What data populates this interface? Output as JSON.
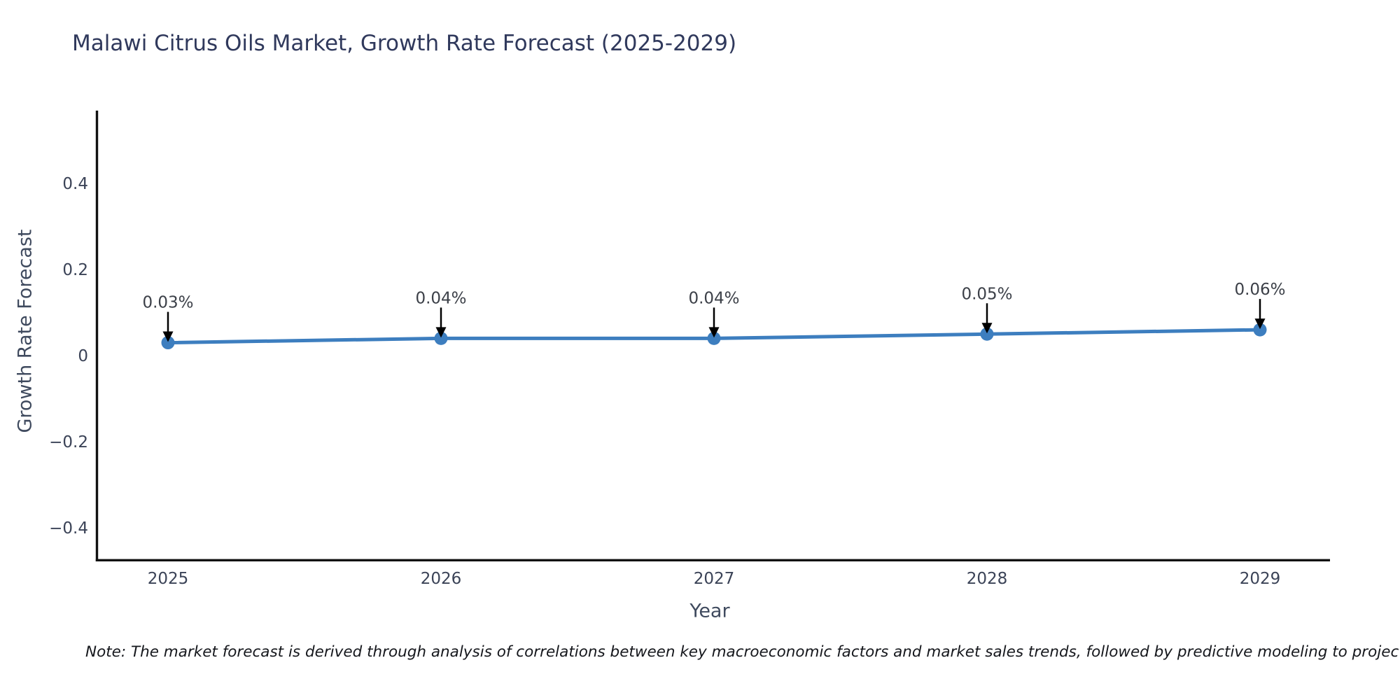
{
  "chart_data": {
    "type": "line",
    "title": "Malawi Citrus Oils Market, Growth Rate Forecast (2025-2029)",
    "xlabel": "Year",
    "ylabel": "Growth Rate Forecast",
    "x": [
      2025,
      2026,
      2027,
      2028,
      2029
    ],
    "x_tick_labels": [
      "2025",
      "2026",
      "2027",
      "2028",
      "2029"
    ],
    "series": [
      {
        "name": "Growth Rate Forecast",
        "values": [
          0.03,
          0.04,
          0.04,
          0.05,
          0.06
        ]
      }
    ],
    "point_labels": [
      "0.03%",
      "0.04%",
      "0.04%",
      "0.05%",
      "0.06%"
    ],
    "y_ticks": [
      0.4,
      0.2,
      0,
      -0.2,
      -0.4
    ],
    "y_tick_labels": [
      "0.4",
      "0.2",
      "0",
      "−0.2",
      "−0.4"
    ],
    "ylim": [
      -0.48,
      0.565
    ],
    "grid": false,
    "legend": "none",
    "annotation_style": "value label with downward black arrow to each point",
    "colors": {
      "line": "#3d7ebf",
      "marker": "#3d7ebf",
      "arrow": "#000000",
      "axis_spine": "#111111",
      "title_text": "#30395c",
      "tick_text": "#3b4357",
      "axis_title_text": "#3f4a5e",
      "annotation_text": "#3c4048"
    }
  },
  "note": "Note: The market forecast is derived through analysis of correlations between key macroeconomic factors and market sales trends, followed by predictive modeling to project future sa"
}
